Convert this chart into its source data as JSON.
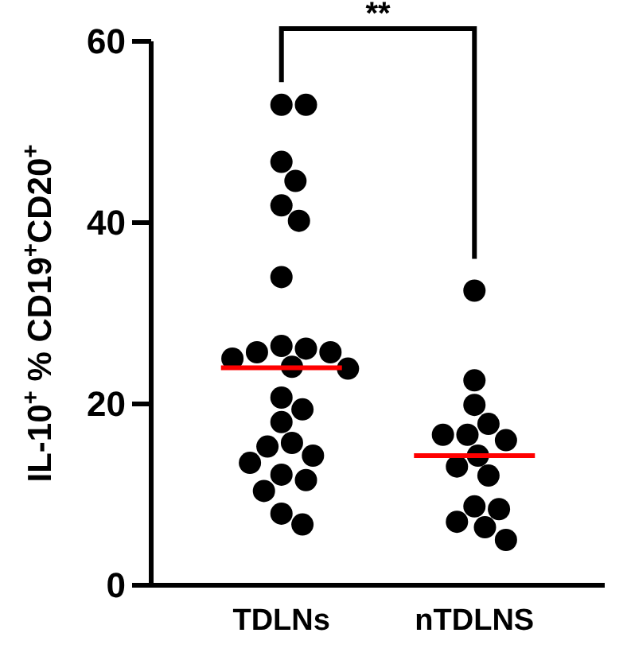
{
  "chart_data": {
    "type": "scatter",
    "categories": [
      "TDLNs",
      "nTDLNS"
    ],
    "ylabel": "IL-10$^{+}$ % CD19$^{+}$CD20$^{+}$",
    "ylim": [
      0,
      60
    ],
    "yticks": [
      0,
      20,
      40,
      60
    ],
    "grid": false,
    "marker": "circle",
    "annotations": [
      "**"
    ],
    "series": [
      {
        "color": "#000000",
        "x": [
          "TDLNs",
          "TDLNs",
          "TDLNs",
          "TDLNs",
          "TDLNs",
          "TDLNs",
          "TDLNs",
          "TDLNs",
          "TDLNs",
          "TDLNs",
          "TDLNs",
          "TDLNs",
          "TDLNs",
          "TDLNs",
          "TDLNs",
          "TDLNs",
          "TDLNs",
          "TDLNs",
          "TDLNs",
          "TDLNs",
          "TDLNs",
          "TDLNs",
          "TDLNs",
          "TDLNs",
          "TDLNs",
          "TDLNs",
          "nTDLNS",
          "nTDLNS",
          "nTDLNS",
          "nTDLNS",
          "nTDLNS",
          "nTDLNS",
          "nTDLNS",
          "nTDLNS",
          "nTDLNS",
          "nTDLNS",
          "nTDLNS",
          "nTDLNS",
          "nTDLNS",
          "nTDLNS",
          "nTDLNS"
        ],
        "values": [
          53.0,
          53.0,
          46.7,
          44.6,
          41.9,
          40.2,
          34.0,
          26.4,
          26.1,
          25.7,
          25.7,
          25.0,
          24.1,
          23.9,
          20.7,
          19.4,
          18.0,
          15.7,
          15.3,
          14.3,
          13.5,
          12.2,
          11.6,
          10.4,
          7.9,
          6.7,
          32.5,
          22.6,
          19.9,
          17.8,
          16.6,
          16.6,
          16.0,
          14.3,
          13.1,
          12.1,
          8.7,
          8.4,
          7.0,
          6.4,
          5.0
        ]
      },
      {
        "type": "box",
        "color": "#ff0000",
        "boxes": [
          {
            "low": 24.0,
            "q1": 24.0,
            "median": 24.0,
            "q3": 24.0,
            "high": 24.0
          },
          {
            "low": 14.3,
            "q1": 14.3,
            "median": 14.3,
            "q3": 14.3,
            "high": 14.3
          }
        ]
      }
    ]
  }
}
